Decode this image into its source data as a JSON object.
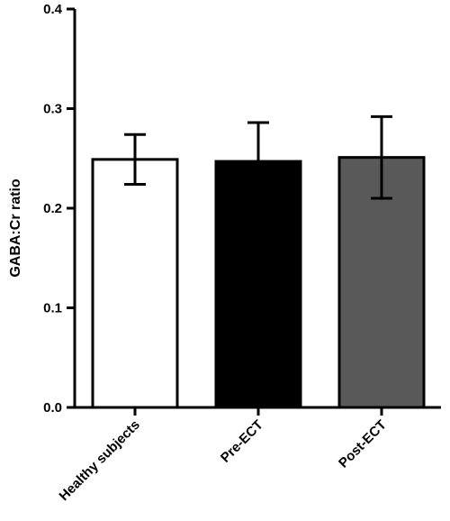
{
  "chart_data": {
    "type": "bar",
    "title": "",
    "xlabel": "",
    "ylabel": "GABA:Cr ratio",
    "ylim": [
      0,
      0.4
    ],
    "yticks": [
      "0.0",
      "0.1",
      "0.2",
      "0.3",
      "0.4"
    ],
    "grid": false,
    "categories": [
      "Healthy subjects",
      "Pre-ECT",
      "Post-ECT"
    ],
    "values": [
      0.249,
      0.247,
      0.251
    ],
    "error": [
      0.025,
      0.039,
      0.041
    ],
    "colors": [
      "#ffffff",
      "#000000",
      "#595959"
    ]
  }
}
